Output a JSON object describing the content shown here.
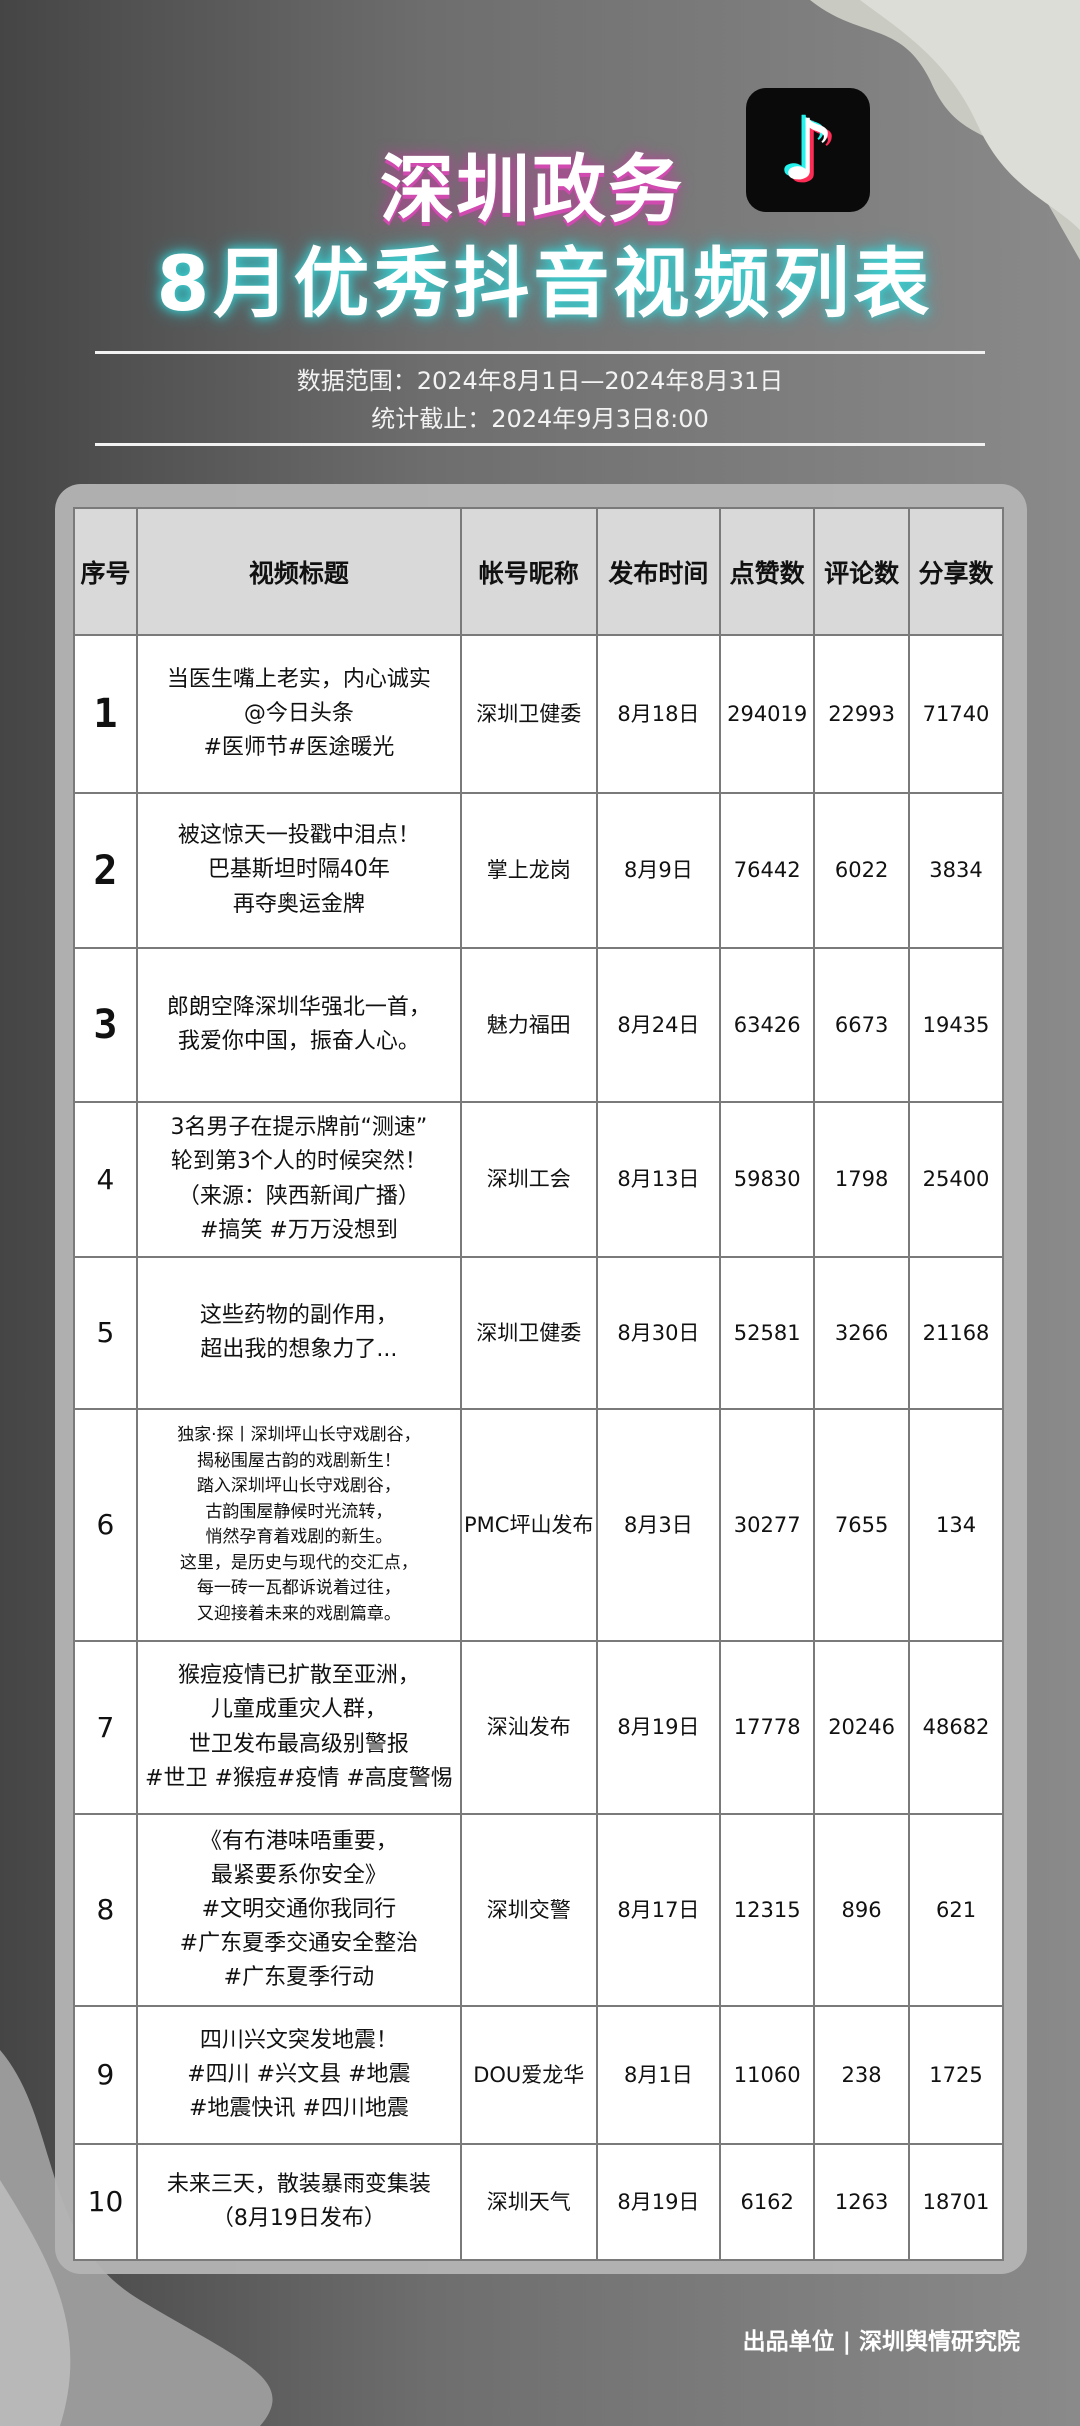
{
  "header": {
    "title_line1": "深圳政务",
    "title_line2": "8月优秀抖音视频列表",
    "logo_icon": "tiktok-logo",
    "data_range": "数据范围：2024年8月1日—2024年8月31日",
    "cutoff": "统计截止：2024年9月3日8:00"
  },
  "table": {
    "columns": [
      "序号",
      "视频标题",
      "帐号昵称",
      "发布时间",
      "点赞数",
      "评论数",
      "分享数"
    ],
    "rows": [
      {
        "rank": "1",
        "title": [
          "当医生嘴上老实，内心诚实",
          "@今日头条",
          "#医师节#医途暖光"
        ],
        "account": "深圳卫健委",
        "date": "8月18日",
        "likes": "294019",
        "comments": "22993",
        "shares": "71740"
      },
      {
        "rank": "2",
        "title": [
          "被这惊天一投戳中泪点！",
          "巴基斯坦时隔40年",
          "再夺奥运金牌"
        ],
        "account": "掌上龙岗",
        "date": "8月9日",
        "likes": "76442",
        "comments": "6022",
        "shares": "3834"
      },
      {
        "rank": "3",
        "title": [
          "郎朗空降深圳华强北一首，",
          "我爱你中国，振奋人心。"
        ],
        "account": "魅力福田",
        "date": "8月24日",
        "likes": "63426",
        "comments": "6673",
        "shares": "19435"
      },
      {
        "rank": "4",
        "title": [
          "3名男子在提示牌前“测速”",
          "轮到第3个人的时候突然！",
          "（来源：陕西新闻广播）",
          "#搞笑 #万万没想到"
        ],
        "account": "深圳工会",
        "date": "8月13日",
        "likes": "59830",
        "comments": "1798",
        "shares": "25400"
      },
      {
        "rank": "5",
        "title": [
          "这些药物的副作用，",
          "超出我的想象力了..."
        ],
        "account": "深圳卫健委",
        "date": "8月30日",
        "likes": "52581",
        "comments": "3266",
        "shares": "21168"
      },
      {
        "rank": "6",
        "title": [
          "独家·探丨深圳坪山长守戏剧谷，",
          "揭秘围屋古韵的戏剧新生！",
          "踏入深圳坪山长守戏剧谷，",
          "古韵围屋静候时光流转，",
          "悄然孕育着戏剧的新生。",
          "这里，是历史与现代的交汇点，",
          "每一砖一瓦都诉说着过往，",
          "又迎接着未来的戏剧篇章。"
        ],
        "account": "PMC坪山发布",
        "date": "8月3日",
        "likes": "30277",
        "comments": "7655",
        "shares": "134"
      },
      {
        "rank": "7",
        "title": [
          "猴痘疫情已扩散至亚洲，",
          "儿童成重灾人群，",
          "世卫发布最高级别警报",
          "#世卫 #猴痘#疫情 #高度警惕"
        ],
        "account": "深汕发布",
        "date": "8月19日",
        "likes": "17778",
        "comments": "20246",
        "shares": "48682"
      },
      {
        "rank": "8",
        "title": [
          "《有冇港味唔重要，",
          "最紧要系你安全》",
          "#文明交通你我同行",
          "#广东夏季交通安全整治",
          "#广东夏季行动"
        ],
        "account": "深圳交警",
        "date": "8月17日",
        "likes": "12315",
        "comments": "896",
        "shares": "621"
      },
      {
        "rank": "9",
        "title": [
          "四川兴文突发地震！",
          "#四川 #兴文县 #地震",
          "#地震快讯 #四川地震"
        ],
        "account": "DOU爱龙华",
        "date": "8月1日",
        "likes": "11060",
        "comments": "238",
        "shares": "1725"
      },
      {
        "rank": "10",
        "title": [
          "未来三天，散装暴雨变集装",
          "（8月19日发布）"
        ],
        "account": "深圳天气",
        "date": "8月19日",
        "likes": "6162",
        "comments": "1263",
        "shares": "18701"
      }
    ]
  },
  "footer": {
    "producer": "出品单位 | 深圳舆情研究院"
  }
}
